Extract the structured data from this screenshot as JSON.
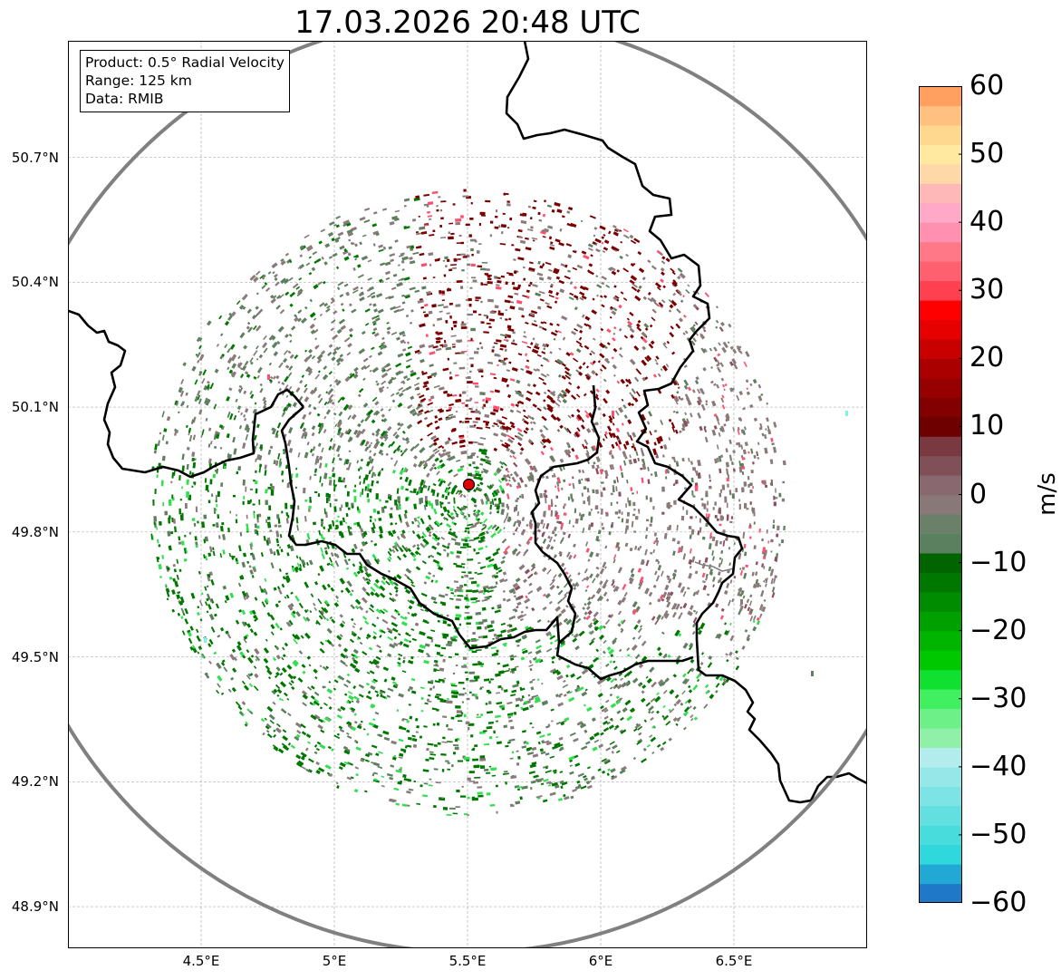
{
  "title": "17.03.2026 20:48 UTC",
  "info": {
    "product": "Product: 0.5° Radial Velocity",
    "range": "Range: 125 km",
    "source": "Data: RMIB"
  },
  "axes": {
    "lat_labels": [
      "50.7°N",
      "50.4°N",
      "50.1°N",
      "49.8°N",
      "49.5°N",
      "49.2°N",
      "48.9°N"
    ],
    "lat_values": [
      50.7,
      50.4,
      50.1,
      49.8,
      49.5,
      49.2,
      48.9
    ],
    "lon_labels": [
      "4.5°E",
      "5°E",
      "5.5°E",
      "6°E",
      "6.5°E"
    ],
    "lon_values": [
      4.5,
      5.0,
      5.5,
      6.0,
      6.5
    ],
    "lon_range": [
      4.0,
      7.0
    ],
    "lat_range": [
      48.8,
      50.98
    ]
  },
  "radar": {
    "lon": 5.505,
    "lat": 49.914,
    "range_km": 125,
    "marker_color": "#e00000"
  },
  "colorbar": {
    "unit": "m/s",
    "min": -60,
    "max": 60,
    "ticks": [
      "60",
      "50",
      "40",
      "30",
      "20",
      "10",
      "0",
      "−10",
      "−20",
      "−30",
      "−40",
      "−50",
      "−60"
    ],
    "tick_values": [
      60,
      50,
      40,
      30,
      20,
      10,
      0,
      -10,
      -20,
      -30,
      -40,
      -50,
      -60
    ],
    "colors": [
      "#1f78c8",
      "#22a8d4",
      "#2ed8dc",
      "#48dcdc",
      "#62e0e0",
      "#7ce4e4",
      "#96e8e8",
      "#b2ecec",
      "#90f0a8",
      "#6ef088",
      "#40f060",
      "#10e030",
      "#00c800",
      "#00b400",
      "#00a000",
      "#008c00",
      "#007800",
      "#006400",
      "#5a8060",
      "#6a8068",
      "#887878",
      "#8a6870",
      "#805058",
      "#7a3840",
      "#6e0000",
      "#820000",
      "#960000",
      "#aa0000",
      "#c80000",
      "#e60000",
      "#ff0000",
      "#ff4050",
      "#ff6070",
      "#ff7888",
      "#ff90b0",
      "#ffa8c8",
      "#ffb8b8",
      "#ffd8a8",
      "#ffe8a0",
      "#ffd890",
      "#ffc080",
      "#ffa060"
    ]
  },
  "colors": {
    "border": "#000000",
    "range_ring": "#808080",
    "grid": "#b0b0b0",
    "outbound_dark": "#7a0000",
    "outbound_light": "#ff5070",
    "inbound_dark": "#007800",
    "inbound_light": "#30e050",
    "near_zero_green": "#5f7f60",
    "near_zero_grey": "#8a7a7a",
    "cyan": "#80f0e8"
  }
}
